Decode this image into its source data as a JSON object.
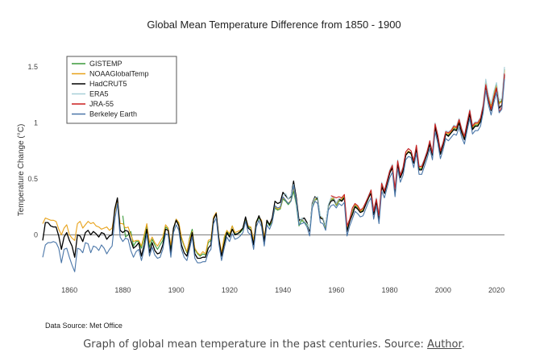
{
  "chart_data": {
    "type": "line",
    "title": "Global Mean Temperature Difference from 1850 - 1900",
    "xlabel": "",
    "ylabel": "Temperature Change (°C)",
    "xlim": [
      1850,
      2023
    ],
    "ylim": [
      -0.35,
      1.55
    ],
    "x_ticks": [
      1860,
      1880,
      1900,
      1920,
      1940,
      1960,
      1980,
      2000,
      2020
    ],
    "y_ticks": [
      0,
      0.5,
      1,
      1.5
    ],
    "y_tick_labels": [
      "0",
      "0.5",
      "1",
      "1.5"
    ],
    "grid": false,
    "zero_line": true,
    "legend_position": "top-left",
    "series": [
      {
        "name": "GISTEMP",
        "color": "#3a9a3a",
        "start_year": 1880,
        "values": [
          0.17,
          -0.02,
          0.0,
          0.03,
          -0.1,
          -0.06,
          -0.06,
          -0.12,
          -0.03,
          0.09,
          -0.11,
          -0.04,
          -0.09,
          -0.13,
          -0.09,
          -0.05,
          0.07,
          0.05,
          -0.12,
          0.05,
          0.14,
          0.1,
          -0.03,
          -0.1,
          -0.16,
          -0.03,
          0.05,
          -0.13,
          -0.17,
          -0.19,
          -0.17,
          -0.18,
          -0.07,
          -0.05,
          0.15,
          0.19,
          -0.04,
          -0.17,
          -0.04,
          0.03,
          0.0,
          0.08,
          0.01,
          0.01,
          0.02,
          0.05,
          0.14,
          0.07,
          0.06,
          -0.07,
          0.11,
          0.15,
          0.12,
          -0.04,
          0.12,
          0.08,
          0.12,
          0.24,
          0.22,
          0.23,
          0.32,
          0.3,
          0.27,
          0.3,
          0.39,
          0.27,
          0.08,
          0.13,
          0.11,
          0.09,
          0.04,
          0.26,
          0.31,
          0.32,
          0.15,
          0.14,
          0.06,
          0.25,
          0.31,
          0.32,
          0.26,
          0.3,
          0.31,
          0.34,
          0.05,
          0.12,
          0.21,
          0.26,
          0.24,
          0.2,
          0.22,
          0.27,
          0.32,
          0.38,
          0.2,
          0.3,
          0.15,
          0.44,
          0.37,
          0.46,
          0.55,
          0.6,
          0.39,
          0.64,
          0.51,
          0.58,
          0.71,
          0.74,
          0.72,
          0.64,
          0.77,
          0.59,
          0.59,
          0.65,
          0.72,
          0.81,
          0.71,
          0.97,
          0.87,
          0.73,
          0.8,
          0.9,
          0.89,
          0.91,
          0.95,
          0.94,
          1.01,
          0.92,
          0.86,
          0.98,
          1.09,
          0.95,
          0.98,
          0.98,
          1.02,
          1.14,
          1.37,
          1.23,
          1.15,
          1.26,
          1.34,
          1.18,
          1.2,
          1.48
        ]
      },
      {
        "name": "NOAAGlobalTemp",
        "color": "#e8a21a",
        "start_year": 1850,
        "values": [
          0.1,
          0.15,
          0.14,
          0.13,
          0.13,
          0.12,
          0.05,
          0.0,
          0.06,
          0.09,
          0.0,
          -0.03,
          -0.05,
          0.1,
          0.12,
          0.06,
          0.09,
          0.12,
          0.1,
          0.11,
          0.08,
          0.07,
          0.05,
          0.06,
          0.07,
          0.04,
          0.06,
          0.2,
          0.32,
          0.1,
          0.1,
          0.06,
          0.07,
          0.0,
          -0.06,
          -0.05,
          -0.05,
          -0.1,
          0.0,
          0.1,
          -0.07,
          -0.02,
          -0.07,
          -0.1,
          -0.06,
          -0.02,
          0.09,
          0.06,
          -0.09,
          0.06,
          0.14,
          0.11,
          -0.02,
          -0.09,
          -0.15,
          -0.04,
          0.03,
          -0.12,
          -0.16,
          -0.18,
          -0.15,
          -0.17,
          -0.05,
          -0.04,
          0.16,
          0.2,
          -0.02,
          -0.16,
          -0.02,
          0.04,
          0.01,
          0.08,
          0.02,
          0.03,
          0.04,
          0.06,
          0.15,
          0.08,
          0.07,
          -0.05,
          0.12,
          0.16,
          0.13,
          -0.02,
          0.13,
          0.09,
          0.13,
          0.25,
          0.23,
          0.24,
          0.33,
          0.31,
          0.28,
          0.31,
          0.42,
          0.3,
          0.12,
          0.14,
          0.12,
          0.1,
          0.04,
          0.27,
          0.32,
          0.33,
          0.16,
          0.15,
          0.07,
          0.26,
          0.32,
          0.33,
          0.27,
          0.31,
          0.32,
          0.35,
          0.06,
          0.13,
          0.22,
          0.27,
          0.25,
          0.21,
          0.23,
          0.28,
          0.33,
          0.4,
          0.21,
          0.31,
          0.17,
          0.46,
          0.39,
          0.48,
          0.56,
          0.61,
          0.4,
          0.65,
          0.52,
          0.59,
          0.72,
          0.75,
          0.73,
          0.65,
          0.78,
          0.6,
          0.6,
          0.66,
          0.73,
          0.82,
          0.72,
          0.98,
          0.88,
          0.74,
          0.81,
          0.91,
          0.9,
          0.92,
          0.96,
          0.95,
          1.02,
          0.93,
          0.87,
          0.99,
          1.1,
          0.96,
          0.99,
          0.99,
          1.03,
          1.15,
          1.36,
          1.22,
          1.14,
          1.25,
          1.33,
          1.17,
          1.19,
          1.47
        ]
      },
      {
        "name": "HadCRUT5",
        "color": "#000000",
        "start_year": 1850,
        "values": [
          -0.05,
          0.11,
          0.11,
          0.08,
          0.07,
          0.07,
          -0.01,
          -0.13,
          -0.02,
          0.02,
          -0.05,
          -0.1,
          -0.2,
          0.0,
          -0.01,
          -0.06,
          0.02,
          0.04,
          0.0,
          0.03,
          0.01,
          -0.02,
          0.02,
          0.01,
          -0.04,
          -0.01,
          0.0,
          0.23,
          0.33,
          0.04,
          0.02,
          0.04,
          0.03,
          -0.05,
          -0.12,
          -0.1,
          -0.07,
          -0.19,
          -0.09,
          0.05,
          -0.16,
          -0.07,
          -0.14,
          -0.17,
          -0.16,
          -0.09,
          0.05,
          0.04,
          -0.16,
          0.06,
          0.13,
          0.08,
          -0.09,
          -0.16,
          -0.19,
          -0.09,
          0.02,
          -0.17,
          -0.21,
          -0.21,
          -0.2,
          -0.2,
          -0.12,
          -0.09,
          0.14,
          0.19,
          -0.04,
          -0.19,
          -0.08,
          0.02,
          -0.02,
          0.05,
          0.0,
          0.01,
          0.03,
          0.06,
          0.16,
          0.06,
          0.04,
          -0.09,
          0.11,
          0.17,
          0.11,
          -0.06,
          0.13,
          0.09,
          0.15,
          0.3,
          0.28,
          0.29,
          0.38,
          0.35,
          0.32,
          0.34,
          0.48,
          0.33,
          0.13,
          0.14,
          0.15,
          0.11,
          0.03,
          0.28,
          0.34,
          0.32,
          0.15,
          0.14,
          0.08,
          0.26,
          0.3,
          0.31,
          0.28,
          0.32,
          0.3,
          0.33,
          0.03,
          0.12,
          0.18,
          0.25,
          0.23,
          0.2,
          0.21,
          0.27,
          0.33,
          0.37,
          0.18,
          0.3,
          0.14,
          0.43,
          0.37,
          0.46,
          0.55,
          0.6,
          0.38,
          0.63,
          0.51,
          0.57,
          0.71,
          0.74,
          0.73,
          0.64,
          0.77,
          0.58,
          0.58,
          0.65,
          0.72,
          0.81,
          0.71,
          0.96,
          0.86,
          0.72,
          0.8,
          0.9,
          0.88,
          0.91,
          0.94,
          0.93,
          1.0,
          0.91,
          0.85,
          0.97,
          1.08,
          0.94,
          0.97,
          0.97,
          1.01,
          1.13,
          1.33,
          1.2,
          1.11,
          1.22,
          1.31,
          1.13,
          1.16,
          1.43
        ]
      },
      {
        "name": "ERA5",
        "color": "#a8cfd8",
        "start_year": 1940,
        "values": [
          0.35,
          0.37,
          0.32,
          0.35,
          0.45,
          0.3,
          0.1,
          0.15,
          0.12,
          0.1,
          0.05,
          0.27,
          0.33,
          0.34,
          0.17,
          0.15,
          0.08,
          0.27,
          0.33,
          0.34,
          0.28,
          0.32,
          0.33,
          0.36,
          0.08,
          0.14,
          0.23,
          0.28,
          0.26,
          0.22,
          0.24,
          0.29,
          0.35,
          0.4,
          0.22,
          0.33,
          0.18,
          0.47,
          0.4,
          0.49,
          0.58,
          0.63,
          0.42,
          0.67,
          0.54,
          0.61,
          0.74,
          0.77,
          0.75,
          0.67,
          0.8,
          0.62,
          0.62,
          0.68,
          0.75,
          0.84,
          0.74,
          1.0,
          0.9,
          0.76,
          0.83,
          0.93,
          0.92,
          0.94,
          0.98,
          0.97,
          1.04,
          0.95,
          0.89,
          1.01,
          1.12,
          0.98,
          1.01,
          1.01,
          1.05,
          1.17,
          1.39,
          1.25,
          1.17,
          1.28,
          1.36,
          1.2,
          1.22,
          1.5
        ]
      },
      {
        "name": "JRA-55",
        "color": "#cc1f1f",
        "start_year": 1958,
        "values": [
          0.35,
          0.34,
          0.33,
          0.34,
          0.33,
          0.36,
          0.08,
          0.14,
          0.24,
          0.28,
          0.26,
          0.22,
          0.24,
          0.29,
          0.34,
          0.4,
          0.21,
          0.32,
          0.17,
          0.46,
          0.39,
          0.48,
          0.57,
          0.62,
          0.41,
          0.66,
          0.53,
          0.6,
          0.74,
          0.77,
          0.75,
          0.66,
          0.8,
          0.61,
          0.61,
          0.67,
          0.74,
          0.84,
          0.73,
          0.99,
          0.89,
          0.75,
          0.82,
          0.92,
          0.91,
          0.93,
          0.97,
          0.96,
          1.03,
          0.94,
          0.88,
          1.0,
          1.11,
          0.97,
          1.0,
          1.0,
          1.04,
          1.15,
          1.34,
          1.21,
          1.12,
          1.23,
          1.31,
          1.1,
          1.14,
          1.44
        ]
      },
      {
        "name": "Berkeley Earth",
        "color": "#4a76a8",
        "start_year": 1850,
        "values": [
          -0.2,
          -0.09,
          -0.07,
          -0.07,
          -0.06,
          -0.07,
          -0.12,
          -0.25,
          -0.13,
          -0.12,
          -0.2,
          -0.27,
          -0.33,
          -0.12,
          -0.13,
          -0.16,
          -0.07,
          -0.08,
          -0.16,
          -0.1,
          -0.11,
          -0.14,
          -0.09,
          -0.12,
          -0.17,
          -0.13,
          -0.1,
          0.13,
          0.28,
          -0.02,
          -0.06,
          -0.03,
          -0.04,
          -0.14,
          -0.2,
          -0.15,
          -0.13,
          -0.23,
          -0.13,
          0.01,
          -0.19,
          -0.11,
          -0.18,
          -0.21,
          -0.2,
          -0.13,
          0.01,
          0.0,
          -0.2,
          0.02,
          0.09,
          0.04,
          -0.13,
          -0.2,
          -0.23,
          -0.13,
          -0.02,
          -0.21,
          -0.25,
          -0.25,
          -0.24,
          -0.24,
          -0.16,
          -0.13,
          0.1,
          0.15,
          -0.08,
          -0.23,
          -0.12,
          -0.02,
          -0.06,
          0.01,
          -0.04,
          -0.03,
          -0.01,
          0.02,
          0.12,
          0.02,
          0.0,
          -0.13,
          0.07,
          0.13,
          0.07,
          -0.1,
          0.09,
          0.05,
          0.11,
          0.26,
          0.24,
          0.25,
          0.34,
          0.31,
          0.28,
          0.3,
          0.44,
          0.29,
          0.09,
          0.1,
          0.11,
          0.07,
          -0.01,
          0.24,
          0.3,
          0.28,
          0.11,
          0.1,
          0.04,
          0.22,
          0.26,
          0.27,
          0.24,
          0.28,
          0.26,
          0.29,
          -0.01,
          0.08,
          0.14,
          0.21,
          0.19,
          0.16,
          0.17,
          0.23,
          0.29,
          0.33,
          0.14,
          0.26,
          0.1,
          0.39,
          0.33,
          0.42,
          0.51,
          0.56,
          0.34,
          0.59,
          0.47,
          0.53,
          0.67,
          0.7,
          0.69,
          0.6,
          0.73,
          0.54,
          0.54,
          0.61,
          0.68,
          0.77,
          0.67,
          0.92,
          0.82,
          0.68,
          0.76,
          0.86,
          0.84,
          0.87,
          0.9,
          0.89,
          0.96,
          0.87,
          0.81,
          0.93,
          1.04,
          0.9,
          0.93,
          0.93,
          0.97,
          1.09,
          1.29,
          1.16,
          1.07,
          1.18,
          1.27,
          1.09,
          1.12,
          1.39
        ]
      }
    ]
  },
  "source_note": "Data Source: Met Office",
  "caption": {
    "text": "Graph of global mean temperature in the past centuries. Source: ",
    "link_text": "Author",
    "suffix": "."
  }
}
